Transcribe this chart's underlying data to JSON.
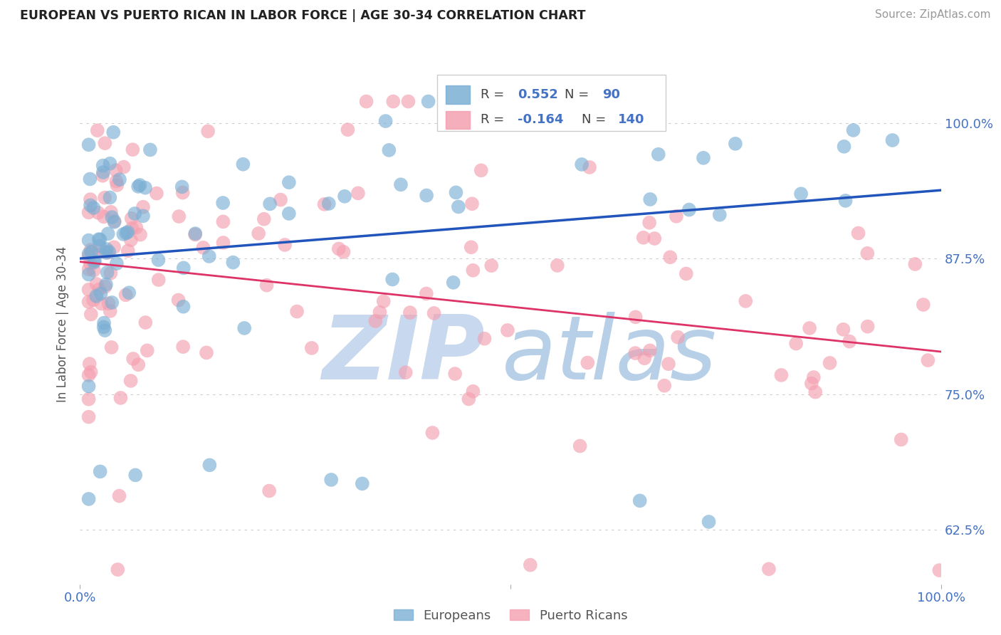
{
  "title": "EUROPEAN VS PUERTO RICAN IN LABOR FORCE | AGE 30-34 CORRELATION CHART",
  "source": "Source: ZipAtlas.com",
  "ylabel": "In Labor Force | Age 30-34",
  "background_color": "#ffffff",
  "plot_bg_color": "#ffffff",
  "title_color": "#222222",
  "source_color": "#999999",
  "axis_label_color": "#555555",
  "tick_color": "#4472c4",
  "grid_color": "#cccccc",
  "watermark_zip": "ZIP",
  "watermark_atlas": "atlas",
  "watermark_color_zip": "#c8d8ee",
  "watermark_color_atlas": "#b8cfe8",
  "blue_color": "#7bafd4",
  "blue_line_color": "#2255bb",
  "pink_color": "#f4a0b0",
  "pink_line_color": "#dd3366",
  "legend_blue_r_val": "0.552",
  "legend_blue_n_val": "90",
  "legend_pink_r_val": "-0.164",
  "legend_pink_n_val": "140",
  "val_color": "#4472c4",
  "xmin": 0.0,
  "xmax": 1.0,
  "ymin": 0.575,
  "ymax": 1.055,
  "yticks": [
    0.625,
    0.75,
    0.875,
    1.0
  ],
  "ytick_labels": [
    "62.5%",
    "75.0%",
    "87.5%",
    "100.0%"
  ],
  "xticks": [
    0.0,
    0.5,
    1.0
  ],
  "xtick_labels": [
    "0.0%",
    "",
    "100.0%"
  ]
}
